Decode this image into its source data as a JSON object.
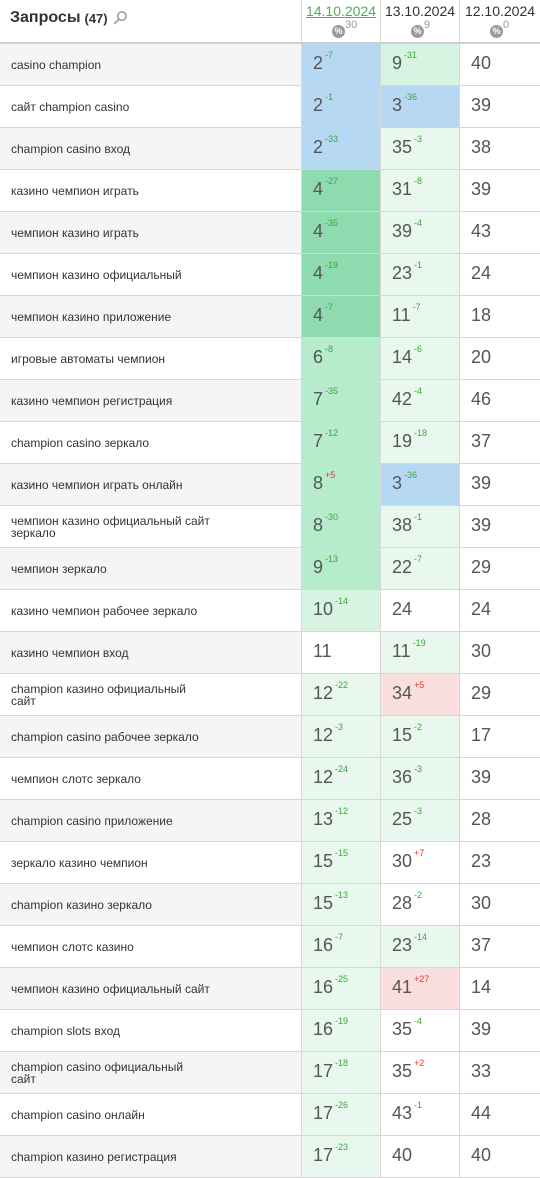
{
  "header": {
    "title": "Запросы",
    "count": "(47)",
    "dates": [
      {
        "label": "14.10.2024",
        "pct": "30"
      },
      {
        "label": "13.10.2024",
        "pct": "9"
      },
      {
        "label": "12.10.2024",
        "pct": "0"
      }
    ],
    "pct_symbol": "%"
  },
  "colors": {
    "blue": "#b6d8f2",
    "green_strong": "#8fdbb0",
    "green_medium": "#b6ebcb",
    "green_light": "#d7f3e1",
    "green_pale": "#e9f8ee",
    "red_light": "#fbdfdf",
    "delta_up": "#3aa83a",
    "delta_down": "#e53935",
    "active_date": "#4caf50"
  },
  "rows": [
    {
      "query": "casino champion",
      "cells": [
        {
          "pos": "2",
          "delta": "-7",
          "dir": "up",
          "bg": "blue"
        },
        {
          "pos": "9",
          "delta": "-31",
          "dir": "up",
          "bg": "g3"
        },
        {
          "pos": "40",
          "delta": "",
          "dir": "",
          "bg": "white"
        }
      ]
    },
    {
      "query": "сайт champion casino",
      "cells": [
        {
          "pos": "2",
          "delta": "-1",
          "dir": "up",
          "bg": "blue"
        },
        {
          "pos": "3",
          "delta": "-36",
          "dir": "up",
          "bg": "blue"
        },
        {
          "pos": "39",
          "delta": "",
          "dir": "",
          "bg": "white"
        }
      ]
    },
    {
      "query": "champion casino вход",
      "cells": [
        {
          "pos": "2",
          "delta": "-33",
          "dir": "up",
          "bg": "blue"
        },
        {
          "pos": "35",
          "delta": "-3",
          "dir": "up",
          "bg": "g4"
        },
        {
          "pos": "38",
          "delta": "",
          "dir": "",
          "bg": "white"
        }
      ]
    },
    {
      "query": "казино чемпион играть",
      "cells": [
        {
          "pos": "4",
          "delta": "-27",
          "dir": "up",
          "bg": "g1"
        },
        {
          "pos": "31",
          "delta": "-8",
          "dir": "up",
          "bg": "g4"
        },
        {
          "pos": "39",
          "delta": "",
          "dir": "",
          "bg": "white"
        }
      ]
    },
    {
      "query": "чемпион казино играть",
      "cells": [
        {
          "pos": "4",
          "delta": "-35",
          "dir": "up",
          "bg": "g1"
        },
        {
          "pos": "39",
          "delta": "-4",
          "dir": "up",
          "bg": "g4"
        },
        {
          "pos": "43",
          "delta": "",
          "dir": "",
          "bg": "white"
        }
      ]
    },
    {
      "query": "чемпион казино официальный",
      "cells": [
        {
          "pos": "4",
          "delta": "-19",
          "dir": "up",
          "bg": "g1"
        },
        {
          "pos": "23",
          "delta": "-1",
          "dir": "up",
          "bg": "g4"
        },
        {
          "pos": "24",
          "delta": "",
          "dir": "",
          "bg": "white"
        }
      ]
    },
    {
      "query": "чемпион казино приложение",
      "cells": [
        {
          "pos": "4",
          "delta": "-7",
          "dir": "up",
          "bg": "g1"
        },
        {
          "pos": "11",
          "delta": "-7",
          "dir": "up",
          "bg": "g4"
        },
        {
          "pos": "18",
          "delta": "",
          "dir": "",
          "bg": "white"
        }
      ]
    },
    {
      "query": "игровые автоматы чемпион",
      "cells": [
        {
          "pos": "6",
          "delta": "-8",
          "dir": "up",
          "bg": "g2"
        },
        {
          "pos": "14",
          "delta": "-6",
          "dir": "up",
          "bg": "g4"
        },
        {
          "pos": "20",
          "delta": "",
          "dir": "",
          "bg": "white"
        }
      ]
    },
    {
      "query": "казино чемпион регистрация",
      "cells": [
        {
          "pos": "7",
          "delta": "-35",
          "dir": "up",
          "bg": "g2"
        },
        {
          "pos": "42",
          "delta": "-4",
          "dir": "up",
          "bg": "g4"
        },
        {
          "pos": "46",
          "delta": "",
          "dir": "",
          "bg": "white"
        }
      ]
    },
    {
      "query": "champion casino зеркало",
      "cells": [
        {
          "pos": "7",
          "delta": "-12",
          "dir": "up",
          "bg": "g2"
        },
        {
          "pos": "19",
          "delta": "-18",
          "dir": "up",
          "bg": "g4"
        },
        {
          "pos": "37",
          "delta": "",
          "dir": "",
          "bg": "white"
        }
      ]
    },
    {
      "query": "казино чемпион играть онлайн",
      "cells": [
        {
          "pos": "8",
          "delta": "+5",
          "dir": "down",
          "bg": "g2"
        },
        {
          "pos": "3",
          "delta": "-36",
          "dir": "up",
          "bg": "blue"
        },
        {
          "pos": "39",
          "delta": "",
          "dir": "",
          "bg": "white"
        }
      ]
    },
    {
      "query": "чемпион казино официальный сайт зеркало",
      "cells": [
        {
          "pos": "8",
          "delta": "-30",
          "dir": "up",
          "bg": "g2"
        },
        {
          "pos": "38",
          "delta": "-1",
          "dir": "up",
          "bg": "g4"
        },
        {
          "pos": "39",
          "delta": "",
          "dir": "",
          "bg": "white"
        }
      ]
    },
    {
      "query": "чемпион зеркало",
      "cells": [
        {
          "pos": "9",
          "delta": "-13",
          "dir": "up",
          "bg": "g2"
        },
        {
          "pos": "22",
          "delta": "-7",
          "dir": "up",
          "bg": "g4"
        },
        {
          "pos": "29",
          "delta": "",
          "dir": "",
          "bg": "white"
        }
      ]
    },
    {
      "query": "казино чемпион рабочее зеркало",
      "cells": [
        {
          "pos": "10",
          "delta": "-14",
          "dir": "up",
          "bg": "g3"
        },
        {
          "pos": "24",
          "delta": "",
          "dir": "",
          "bg": "white"
        },
        {
          "pos": "24",
          "delta": "",
          "dir": "",
          "bg": "white"
        }
      ]
    },
    {
      "query": "казино чемпион вход",
      "cells": [
        {
          "pos": "11",
          "delta": "",
          "dir": "",
          "bg": "white"
        },
        {
          "pos": "11",
          "delta": "-19",
          "dir": "up",
          "bg": "g4"
        },
        {
          "pos": "30",
          "delta": "",
          "dir": "",
          "bg": "white"
        }
      ]
    },
    {
      "query": "champion казино официальный сайт",
      "cells": [
        {
          "pos": "12",
          "delta": "-22",
          "dir": "up",
          "bg": "g4"
        },
        {
          "pos": "34",
          "delta": "+5",
          "dir": "down",
          "bg": "red"
        },
        {
          "pos": "29",
          "delta": "",
          "dir": "",
          "bg": "white"
        }
      ]
    },
    {
      "query": "champion casino рабочее зеркало",
      "cells": [
        {
          "pos": "12",
          "delta": "-3",
          "dir": "up",
          "bg": "g4"
        },
        {
          "pos": "15",
          "delta": "-2",
          "dir": "up",
          "bg": "g4"
        },
        {
          "pos": "17",
          "delta": "",
          "dir": "",
          "bg": "white"
        }
      ]
    },
    {
      "query": "чемпион слотс зеркало",
      "cells": [
        {
          "pos": "12",
          "delta": "-24",
          "dir": "up",
          "bg": "g4"
        },
        {
          "pos": "36",
          "delta": "-3",
          "dir": "up",
          "bg": "g4"
        },
        {
          "pos": "39",
          "delta": "",
          "dir": "",
          "bg": "white"
        }
      ]
    },
    {
      "query": "champion casino приложение",
      "cells": [
        {
          "pos": "13",
          "delta": "-12",
          "dir": "up",
          "bg": "g4"
        },
        {
          "pos": "25",
          "delta": "-3",
          "dir": "up",
          "bg": "g4"
        },
        {
          "pos": "28",
          "delta": "",
          "dir": "",
          "bg": "white"
        }
      ]
    },
    {
      "query": "зеркало казино чемпион",
      "cells": [
        {
          "pos": "15",
          "delta": "-15",
          "dir": "up",
          "bg": "g4"
        },
        {
          "pos": "30",
          "delta": "+7",
          "dir": "down",
          "bg": "white"
        },
        {
          "pos": "23",
          "delta": "",
          "dir": "",
          "bg": "white"
        }
      ]
    },
    {
      "query": "champion казино зеркало",
      "cells": [
        {
          "pos": "15",
          "delta": "-13",
          "dir": "up",
          "bg": "g4"
        },
        {
          "pos": "28",
          "delta": "-2",
          "dir": "up",
          "bg": "white"
        },
        {
          "pos": "30",
          "delta": "",
          "dir": "",
          "bg": "white"
        }
      ]
    },
    {
      "query": "чемпион слотс казино",
      "cells": [
        {
          "pos": "16",
          "delta": "-7",
          "dir": "up",
          "bg": "g4"
        },
        {
          "pos": "23",
          "delta": "-14",
          "dir": "up",
          "bg": "g4"
        },
        {
          "pos": "37",
          "delta": "",
          "dir": "",
          "bg": "white"
        }
      ]
    },
    {
      "query": "чемпион казино официальный сайт",
      "cells": [
        {
          "pos": "16",
          "delta": "-25",
          "dir": "up",
          "bg": "g4"
        },
        {
          "pos": "41",
          "delta": "+27",
          "dir": "down",
          "bg": "red"
        },
        {
          "pos": "14",
          "delta": "",
          "dir": "",
          "bg": "white"
        }
      ]
    },
    {
      "query": "champion slots вход",
      "cells": [
        {
          "pos": "16",
          "delta": "-19",
          "dir": "up",
          "bg": "g4"
        },
        {
          "pos": "35",
          "delta": "-4",
          "dir": "up",
          "bg": "white"
        },
        {
          "pos": "39",
          "delta": "",
          "dir": "",
          "bg": "white"
        }
      ]
    },
    {
      "query": "champion casino официальный сайт",
      "cells": [
        {
          "pos": "17",
          "delta": "-18",
          "dir": "up",
          "bg": "g4"
        },
        {
          "pos": "35",
          "delta": "+2",
          "dir": "down",
          "bg": "white"
        },
        {
          "pos": "33",
          "delta": "",
          "dir": "",
          "bg": "white"
        }
      ]
    },
    {
      "query": "champion casino онлайн",
      "cells": [
        {
          "pos": "17",
          "delta": "-26",
          "dir": "up",
          "bg": "g4"
        },
        {
          "pos": "43",
          "delta": "-1",
          "dir": "up",
          "bg": "white"
        },
        {
          "pos": "44",
          "delta": "",
          "dir": "",
          "bg": "white"
        }
      ]
    },
    {
      "query": "champion казино регистрация",
      "cells": [
        {
          "pos": "17",
          "delta": "-23",
          "dir": "up",
          "bg": "g4"
        },
        {
          "pos": "40",
          "delta": "",
          "dir": "",
          "bg": "white"
        },
        {
          "pos": "40",
          "delta": "",
          "dir": "",
          "bg": "white"
        }
      ]
    }
  ]
}
